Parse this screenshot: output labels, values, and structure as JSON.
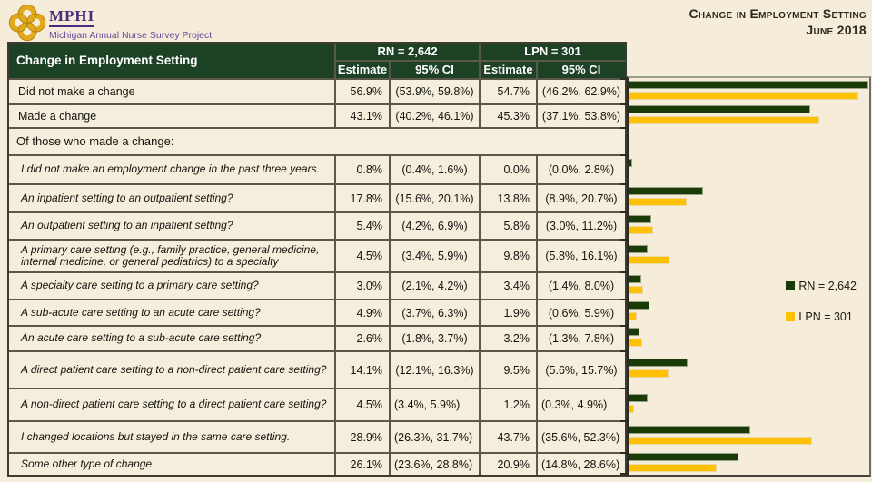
{
  "brand": {
    "name": "MPHI",
    "tagline": "Michigan Annual Nurse Survey Project",
    "logo_icon": "mphi-knot-icon",
    "logo_color": "#e3a91c",
    "text_color": "#4a2c7f"
  },
  "report": {
    "title": "Change in Employment Setting",
    "date": "June 2018"
  },
  "table": {
    "row_header": "Change in Employment Setting",
    "groups": [
      {
        "label": "RN = 2,642"
      },
      {
        "label": "LPN = 301"
      }
    ],
    "sub_headers": [
      "Estimate",
      "95% CI",
      "Estimate",
      "95% CI"
    ],
    "rows": [
      {
        "label": "Did not make a change",
        "italic": false,
        "rn_est": "56.9%",
        "rn_ci": "(53.9%, 59.8%)",
        "lpn_est": "54.7%",
        "lpn_ci": "(46.2%, 62.9%)"
      },
      {
        "label": "Made a change",
        "italic": false,
        "rn_est": "43.1%",
        "rn_ci": "(40.2%, 46.1%)",
        "lpn_est": "45.3%",
        "lpn_ci": "(37.1%, 53.8%)"
      },
      {
        "label": "Of those who made a change:",
        "section": true
      },
      {
        "label": "I did not make an employment change in the past three years.",
        "italic": true,
        "rn_est": "0.8%",
        "rn_ci": "(0.4%, 1.6%)",
        "lpn_est": "0.0%",
        "lpn_ci": "(0.0%, 2.8%)"
      },
      {
        "label": "An inpatient setting to an outpatient setting?",
        "italic": true,
        "rn_est": "17.8%",
        "rn_ci": "(15.6%, 20.1%)",
        "lpn_est": "13.8%",
        "lpn_ci": "(8.9%, 20.7%)"
      },
      {
        "label": "An outpatient setting to an inpatient setting?",
        "italic": true,
        "rn_est": "5.4%",
        "rn_ci": "(4.2%, 6.9%)",
        "lpn_est": "5.8%",
        "lpn_ci": "(3.0%, 11.2%)"
      },
      {
        "label": "A primary care setting (e.g., family practice, general medicine, internal medicine, or general pediatrics) to a specialty",
        "italic": true,
        "rn_est": "4.5%",
        "rn_ci": "(3.4%, 5.9%)",
        "lpn_est": "9.8%",
        "lpn_ci": "(5.8%, 16.1%)"
      },
      {
        "label": "A specialty care setting to a primary care setting?",
        "italic": true,
        "rn_est": "3.0%",
        "rn_ci": "(2.1%, 4.2%)",
        "lpn_est": "3.4%",
        "lpn_ci": "(1.4%, 8.0%)"
      },
      {
        "label": "A sub-acute care setting to an acute care setting?",
        "italic": true,
        "rn_est": "4.9%",
        "rn_ci": "(3.7%, 6.3%)",
        "lpn_est": "1.9%",
        "lpn_ci": "(0.6%, 5.9%)"
      },
      {
        "label": "An acute care setting to a sub-acute care setting?",
        "italic": true,
        "rn_est": "2.6%",
        "rn_ci": "(1.8%, 3.7%)",
        "lpn_est": "3.2%",
        "lpn_ci": "(1.3%, 7.8%)"
      },
      {
        "label": "A direct patient care setting to a non-direct patient care setting?",
        "italic": true,
        "rn_est": "14.1%",
        "rn_ci": "(12.1%, 16.3%)",
        "lpn_est": "9.5%",
        "lpn_ci": "(5.6%, 15.7%)"
      },
      {
        "label": "A non-direct patient care setting to a direct patient care setting?",
        "italic": true,
        "ci_left": true,
        "rn_est": "4.5%",
        "rn_ci": "(3.4%, 5.9%)",
        "lpn_est": "1.2%",
        "lpn_ci": "(0.3%, 4.9%)"
      },
      {
        "label": "I changed locations but stayed in the same care setting.",
        "italic": true,
        "ci_left": true,
        "rn_est": "28.9%",
        "rn_ci": "(26.3%, 31.7%)",
        "lpn_est": "43.7%",
        "lpn_ci": "(35.6%, 52.3%)"
      },
      {
        "label": "Some other type of change",
        "italic": true,
        "ci_left": true,
        "rn_est": "26.1%",
        "rn_ci": "(23.6%, 28.8%)",
        "lpn_est": "20.9%",
        "lpn_ci": "(14.8%, 28.6%)"
      }
    ]
  },
  "legend": [
    {
      "label": "RN = 2,642",
      "color": "#1a3b08"
    },
    {
      "label": "LPN = 301",
      "color": "#ffc104"
    }
  ],
  "chart_data": {
    "type": "bar",
    "orientation": "horizontal",
    "title": "Change in Employment Setting",
    "categories": [
      "Did not make a change",
      "Made a change",
      "Of those who made a change:",
      "I did not make an employment change in the past three years.",
      "An inpatient setting to an outpatient setting?",
      "An outpatient setting to an inpatient setting?",
      "A primary care setting (e.g., family practice, general medicine, internal medicine, or general pediatrics) to a specialty",
      "A specialty care setting to a primary care setting?",
      "A sub-acute care setting to an acute care setting?",
      "An acute care setting to a sub-acute care setting?",
      "A direct patient care setting to a non-direct patient care setting?",
      "A non-direct patient care setting to a direct patient care setting?",
      "I changed locations but stayed in the same care setting.",
      "Some other type of change"
    ],
    "series": [
      {
        "name": "RN = 2,642",
        "color": "#1a3b08",
        "values": [
          56.9,
          43.1,
          null,
          0.8,
          17.8,
          5.4,
          4.5,
          3.0,
          4.9,
          2.6,
          14.1,
          4.5,
          28.9,
          26.1
        ]
      },
      {
        "name": "LPN = 301",
        "color": "#ffc104",
        "values": [
          54.7,
          45.3,
          null,
          0.0,
          13.8,
          5.8,
          9.8,
          3.4,
          1.9,
          3.2,
          9.5,
          1.2,
          43.7,
          20.9
        ]
      }
    ],
    "xlim": [
      0,
      57.2
    ],
    "unit": "%",
    "grid": false,
    "legend_position": "right"
  }
}
